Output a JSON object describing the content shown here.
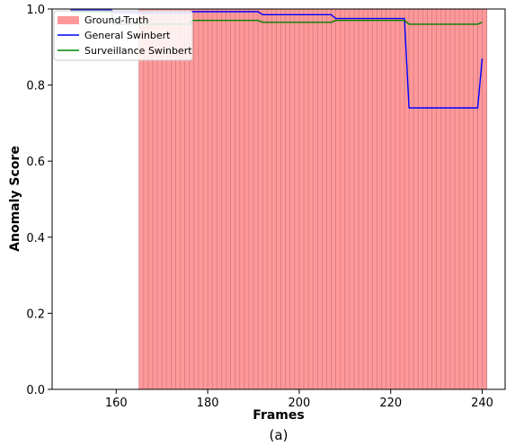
{
  "chart_data": {
    "type": "line",
    "xlabel": "Frames",
    "ylabel": "Anomaly Score",
    "caption": "(a)",
    "xlim": [
      146,
      245
    ],
    "ylim": [
      0.0,
      1.0
    ],
    "xticks": [
      160,
      180,
      200,
      220,
      240
    ],
    "yticks": [
      0.0,
      0.2,
      0.4,
      0.6,
      0.8,
      1.0
    ],
    "xtick_labels": [
      "160",
      "180",
      "200",
      "220",
      "240"
    ],
    "ytick_labels": [
      "0.0",
      "0.2",
      "0.4",
      "0.6",
      "0.8",
      "1.0"
    ],
    "grid": false,
    "legend_position": "top-left",
    "ground_truth": {
      "name": "Ground-Truth",
      "ranges": [
        [
          165,
          241
        ]
      ],
      "color": "#ff9999",
      "frame_stripe_color": "#d07a86"
    },
    "series": [
      {
        "name": "General Swinbert",
        "color": "#0000ff",
        "points": [
          [
            150,
            0.997
          ],
          [
            159,
            0.997
          ],
          [
            159.5,
            0.99
          ],
          [
            176,
            0.99
          ],
          [
            176.5,
            0.993
          ],
          [
            191,
            0.993
          ],
          [
            192,
            0.985
          ],
          [
            207,
            0.985
          ],
          [
            208,
            0.975
          ],
          [
            223,
            0.975
          ],
          [
            224,
            0.74
          ],
          [
            239,
            0.74
          ],
          [
            240,
            0.87
          ]
        ]
      },
      {
        "name": "Surveillance Swinbert",
        "color": "#008000",
        "points": [
          [
            150,
            0.993
          ],
          [
            159,
            0.993
          ],
          [
            159.5,
            0.96
          ],
          [
            176,
            0.96
          ],
          [
            176.5,
            0.97
          ],
          [
            191,
            0.97
          ],
          [
            192,
            0.965
          ],
          [
            207,
            0.965
          ],
          [
            208,
            0.97
          ],
          [
            223,
            0.97
          ],
          [
            224,
            0.96
          ],
          [
            239,
            0.96
          ],
          [
            240,
            0.965
          ]
        ]
      }
    ]
  }
}
